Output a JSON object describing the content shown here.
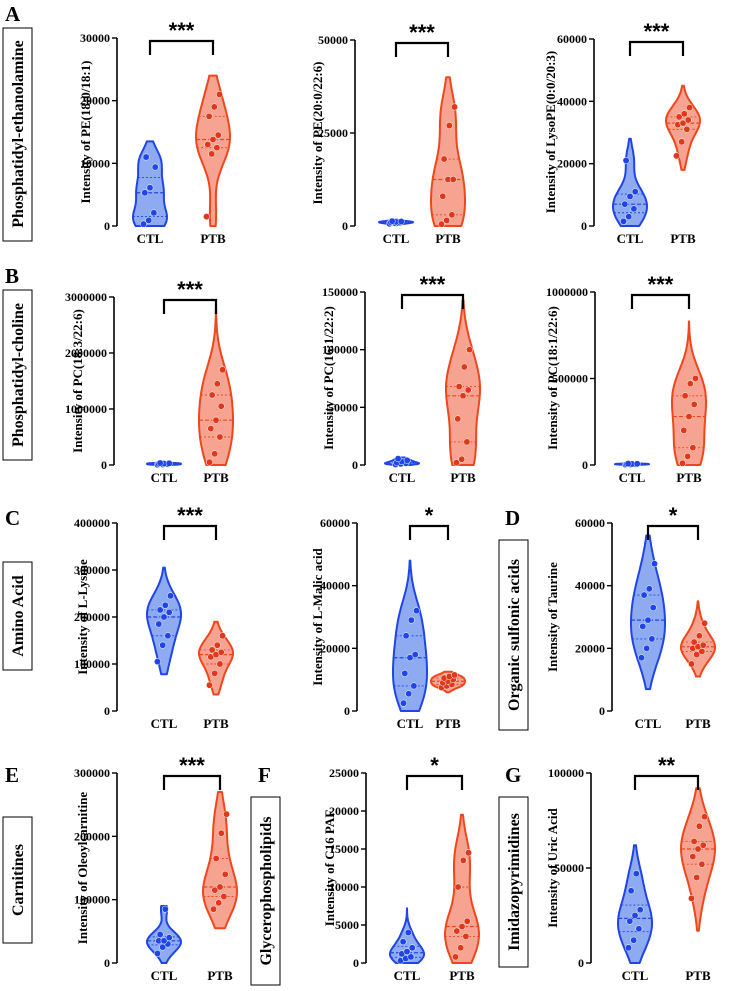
{
  "groups": [
    "CTL",
    "PTB"
  ],
  "colors": {
    "ctl_fill": "#7a9cf0",
    "ctl_stroke": "#1f45e8",
    "ctl_dot": "#1f45e8",
    "ptb_fill": "#f6937e",
    "ptb_stroke": "#f0461c",
    "ptb_dot": "#e0381a"
  },
  "panel_labels": [
    "A",
    "B",
    "C",
    "D",
    "E",
    "F",
    "G"
  ],
  "category_labels": [
    "Phosphatidyl-ethanolamine",
    "Phosphatidyl-choline",
    "Amino Acid",
    "Organic sulfonic acids",
    "Carnitines",
    "Glycerophospholipids",
    "Imidazopyrimidines"
  ],
  "chart_data": [
    {
      "type": "violin",
      "ylabel": "Intensity of PE(18:0/18:1)",
      "yticks": [
        "0",
        "10000",
        "20000",
        "30000"
      ],
      "ylim": [
        0,
        30000
      ],
      "significance": "***",
      "series": [
        {
          "name": "CTL",
          "range": [
            0,
            13500
          ],
          "values": [
            300,
            900,
            2100,
            5300,
            6100,
            9400,
            11000
          ]
        },
        {
          "name": "PTB",
          "range": [
            0,
            24000
          ],
          "values": [
            1500,
            11500,
            12500,
            13000,
            13800,
            14500,
            17500,
            19000,
            21000
          ]
        }
      ]
    },
    {
      "type": "violin",
      "ylabel": "Intensity of PE(20:0/22:6)",
      "yticks": [
        "0",
        "25000",
        "50000"
      ],
      "ylim": [
        0,
        50000
      ],
      "significance": "***",
      "series": [
        {
          "name": "CTL",
          "range": [
            200,
            1800
          ],
          "values": [
            600,
            800,
            900,
            1000,
            1100,
            1200,
            1300
          ]
        },
        {
          "name": "PTB",
          "range": [
            0,
            40000
          ],
          "values": [
            500,
            1500,
            3000,
            8000,
            12500,
            12500,
            18000,
            27000,
            32000
          ]
        }
      ]
    },
    {
      "type": "violin",
      "ylabel": "Intensity of LysoPE(0:0/20:3)",
      "yticks": [
        "0",
        "20000",
        "40000",
        "60000"
      ],
      "ylim": [
        0,
        60000
      ],
      "significance": "***",
      "series": [
        {
          "name": "CTL",
          "range": [
            0,
            28000
          ],
          "values": [
            1500,
            3000,
            5500,
            7000,
            9500,
            11000,
            21000
          ]
        },
        {
          "name": "PTB",
          "range": [
            18000,
            45000
          ],
          "values": [
            22500,
            27000,
            31000,
            32500,
            33000,
            34000,
            35000,
            36000,
            38000
          ]
        }
      ]
    },
    {
      "type": "violin",
      "ylabel": "Intensity of  PC(18:3/22:6)",
      "yticks": [
        "0",
        "1000000",
        "2000000",
        "3000000"
      ],
      "ylim": [
        0,
        3000000
      ],
      "significance": "***",
      "series": [
        {
          "name": "CTL",
          "range": [
            0,
            45000
          ],
          "values": [
            5000,
            10000,
            15000,
            20000,
            25000,
            30000,
            35000
          ]
        },
        {
          "name": "PTB",
          "range": [
            0,
            2800000
          ],
          "values": [
            50000,
            200000,
            500000,
            650000,
            800000,
            1050000,
            1250000,
            1450000,
            1700000
          ]
        }
      ]
    },
    {
      "type": "violin",
      "ylabel": "Intensity of PC(16:1/22:2)",
      "yticks": [
        "0",
        "50000",
        "100000",
        "150000"
      ],
      "ylim": [
        0,
        150000
      ],
      "significance": "***",
      "series": [
        {
          "name": "CTL",
          "range": [
            0,
            6500
          ],
          "values": [
            500,
            1000,
            1500,
            2000,
            3000,
            4000,
            5500
          ]
        },
        {
          "name": "PTB",
          "range": [
            0,
            143000
          ],
          "values": [
            2000,
            5000,
            20000,
            40000,
            60000,
            65000,
            68000,
            85000,
            100000
          ]
        }
      ]
    },
    {
      "type": "violin",
      "ylabel": "Intensity of PC(18:1/22:6)",
      "yticks": [
        "0",
        "500000",
        "1000000"
      ],
      "ylim": [
        0,
        1000000
      ],
      "significance": "***",
      "series": [
        {
          "name": "CTL",
          "range": [
            0,
            12000
          ],
          "values": [
            2000,
            3000,
            4000,
            5000,
            6000,
            7000,
            8000
          ]
        },
        {
          "name": "PTB",
          "range": [
            0,
            830000
          ],
          "values": [
            10000,
            50000,
            100000,
            200000,
            280000,
            350000,
            400000,
            470000,
            500000
          ]
        }
      ]
    },
    {
      "type": "violin",
      "ylabel": "Intensity  of L-Lysine",
      "yticks": [
        "0",
        "100000",
        "200000",
        "300000",
        "400000"
      ],
      "ylim": [
        0,
        400000
      ],
      "significance": "***",
      "series": [
        {
          "name": "CTL",
          "range": [
            78000,
            305000
          ],
          "values": [
            105000,
            140000,
            160000,
            185000,
            200000,
            210000,
            215000,
            225000,
            245000
          ]
        },
        {
          "name": "PTB",
          "range": [
            35000,
            190000
          ],
          "values": [
            55000,
            80000,
            100000,
            115000,
            120000,
            125000,
            130000,
            140000,
            160000
          ]
        }
      ]
    },
    {
      "type": "violin",
      "ylabel": "Intensity of L-Malic acid",
      "yticks": [
        "0",
        "20000",
        "40000",
        "60000"
      ],
      "ylim": [
        0,
        60000
      ],
      "significance": "*",
      "series": [
        {
          "name": "CTL",
          "range": [
            0,
            48000
          ],
          "values": [
            2500,
            5500,
            8000,
            12000,
            17000,
            18000,
            24000,
            29000,
            32000
          ]
        },
        {
          "name": "PTB",
          "range": [
            6000,
            12500
          ],
          "values": [
            7500,
            8000,
            8500,
            9000,
            9500,
            10000,
            10500,
            11000,
            11500
          ]
        }
      ]
    },
    {
      "type": "violin",
      "ylabel": "Intensity of Taurine",
      "yticks": [
        "0",
        "20000",
        "40000",
        "60000"
      ],
      "ylim": [
        0,
        60000
      ],
      "significance": "*",
      "series": [
        {
          "name": "CTL",
          "range": [
            7000,
            56000
          ],
          "values": [
            17000,
            20000,
            23000,
            27000,
            29000,
            33000,
            37000,
            39000,
            47000
          ]
        },
        {
          "name": "PTB",
          "range": [
            11000,
            35000
          ],
          "values": [
            15000,
            18000,
            19000,
            20000,
            20500,
            21000,
            22000,
            24000,
            28000
          ]
        }
      ]
    },
    {
      "type": "violin",
      "ylabel": "Intensity of Oleoylcarnitine",
      "yticks": [
        "0",
        "100000",
        "200000",
        "300000"
      ],
      "ylim": [
        0,
        300000
      ],
      "significance": "***",
      "series": [
        {
          "name": "CTL",
          "range": [
            0,
            90000
          ],
          "values": [
            15000,
            25000,
            30000,
            35000,
            35000,
            40000,
            45000,
            85000
          ]
        },
        {
          "name": "PTB",
          "range": [
            55000,
            270000
          ],
          "values": [
            85000,
            95000,
            105000,
            115000,
            120000,
            140000,
            165000,
            205000,
            235000
          ]
        }
      ]
    },
    {
      "type": "violin",
      "ylabel": "Intensity of C16 PAF",
      "yticks": [
        "0",
        "5000",
        "10000",
        "15000",
        "20000",
        "25000"
      ],
      "ylim": [
        0,
        25000
      ],
      "significance": "*",
      "series": [
        {
          "name": "CTL",
          "range": [
            0,
            7200
          ],
          "values": [
            300,
            600,
            800,
            1200,
            1500,
            2000,
            2800,
            4000
          ]
        },
        {
          "name": "PTB",
          "range": [
            0,
            19500
          ],
          "values": [
            800,
            2000,
            3500,
            4200,
            4800,
            5500,
            10000,
            13500,
            14500
          ]
        }
      ]
    },
    {
      "type": "violin",
      "ylabel": "Intensity of Uric Acid",
      "yticks": [
        "0",
        "50000",
        "100000"
      ],
      "ylim": [
        0,
        100000
      ],
      "significance": "**",
      "series": [
        {
          "name": "CTL",
          "range": [
            0,
            62000
          ],
          "values": [
            8000,
            12000,
            18000,
            22000,
            25000,
            28000,
            38000,
            47000
          ]
        },
        {
          "name": "PTB",
          "range": [
            17000,
            92000
          ],
          "values": [
            34000,
            45000,
            52000,
            56000,
            60000,
            62000,
            64000,
            72000,
            77000
          ]
        }
      ]
    }
  ]
}
